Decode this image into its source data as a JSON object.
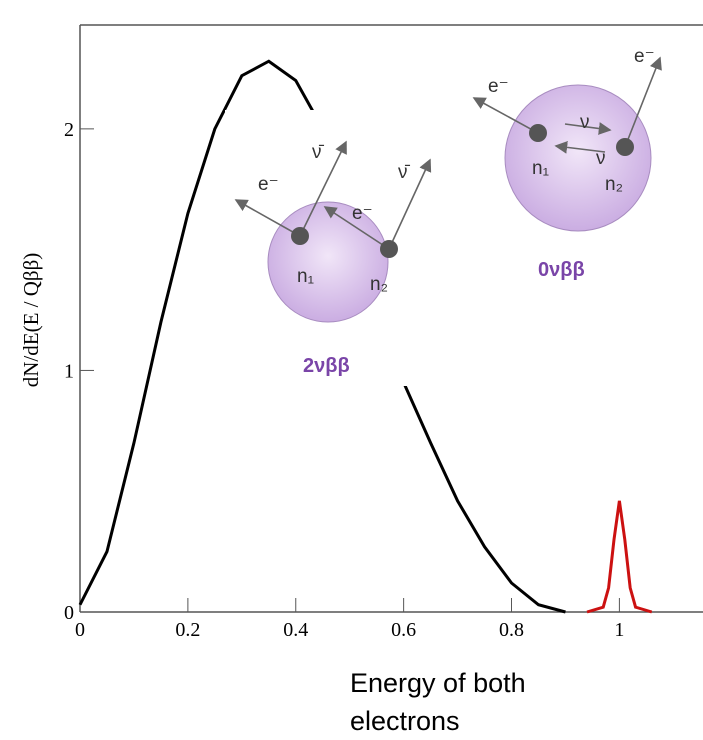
{
  "chart_data": {
    "type": "line",
    "y_label": "dN/dE(E / Qββ)",
    "x_label": [
      "Energy of both",
      "electrons"
    ],
    "xlim": [
      0,
      1.155
    ],
    "ylim": [
      0,
      2.43
    ],
    "xticks": [
      0,
      0.2,
      0.4,
      0.6,
      0.8,
      1
    ],
    "yticks": [
      0,
      1,
      2
    ],
    "series": [
      {
        "name": "2νββ",
        "color": "#000000",
        "x": [
          0,
          0.05,
          0.1,
          0.15,
          0.2,
          0.25,
          0.3,
          0.35,
          0.4,
          0.45,
          0.5,
          0.55,
          0.6,
          0.65,
          0.7,
          0.75,
          0.8,
          0.85,
          0.9
        ],
        "values": [
          0.03,
          0.25,
          0.7,
          1.2,
          1.65,
          2.0,
          2.22,
          2.28,
          2.2,
          2.0,
          1.72,
          1.38,
          0.95,
          0.7,
          0.46,
          0.27,
          0.12,
          0.03,
          0
        ]
      },
      {
        "name": "0νββ",
        "color": "#cc1111",
        "x": [
          0.94,
          0.97,
          0.98,
          0.99,
          1.0,
          1.01,
          1.02,
          1.03,
          1.06
        ],
        "values": [
          0,
          0.02,
          0.1,
          0.3,
          0.46,
          0.3,
          0.1,
          0.02,
          0
        ]
      }
    ],
    "diagram": {
      "two_nu": {
        "electron": "e⁻",
        "antineutrino": "ν̄",
        "n1": "n₁",
        "n2": "n₂"
      },
      "zero_nu": {
        "electron": "e⁻",
        "neutrino": "ν",
        "n1": "n₁",
        "n2": "n₂"
      }
    }
  }
}
